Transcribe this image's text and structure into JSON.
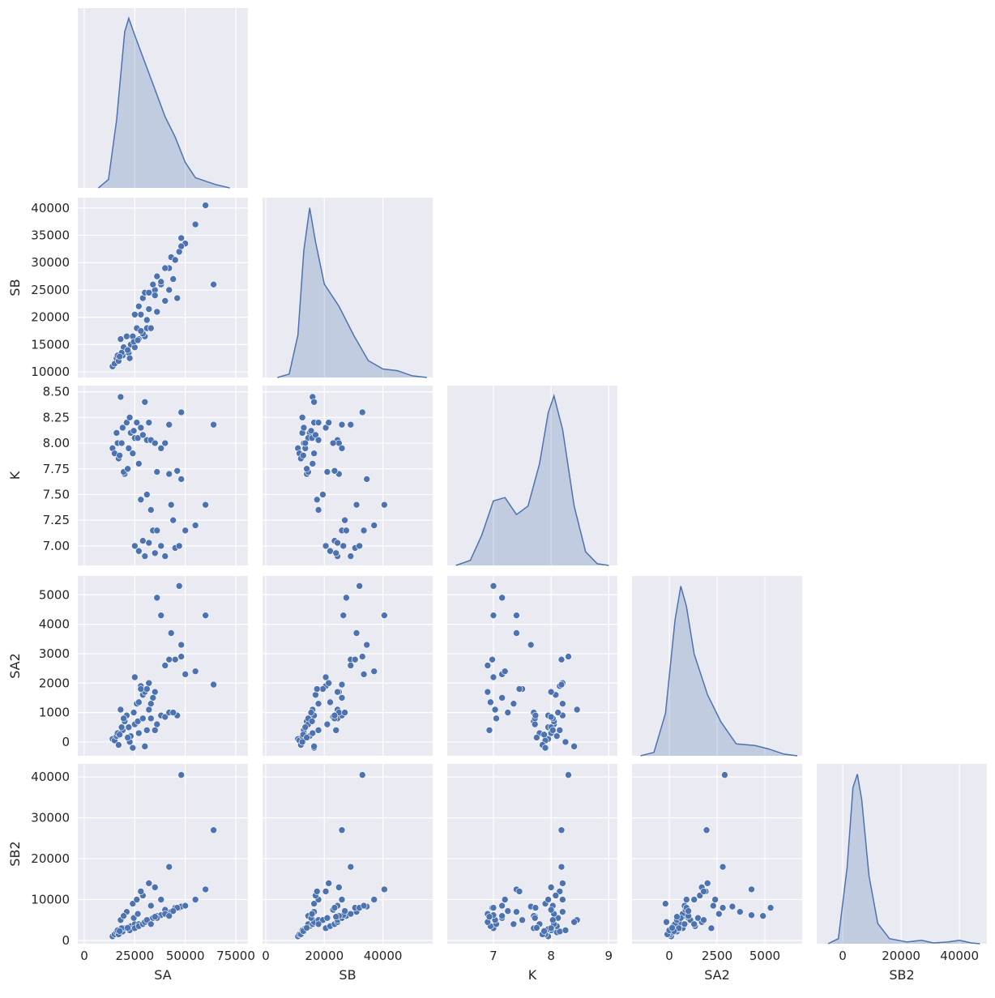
{
  "chart_data": {
    "type": "pairplot",
    "corner": true,
    "point_color": "#4c72b0",
    "fill_color": "#4c72b0",
    "background": "#eaeaf2",
    "variables": [
      {
        "name": "SA",
        "xlim": [
          -3200,
          81000
        ],
        "xticks": [
          0,
          25000,
          50000,
          75000
        ],
        "values": [
          14000,
          15000,
          16000,
          17000,
          16500,
          18000,
          19000,
          20000,
          21000,
          22000,
          23000,
          24000,
          25000,
          26000,
          27000,
          28000,
          30000,
          19500,
          22500,
          18500,
          24500,
          17500,
          21500,
          26500,
          29000,
          31000,
          33000,
          35000,
          38000,
          40000,
          32000,
          42000,
          64000,
          25000,
          27000,
          29000,
          30000,
          32000,
          34000,
          36000,
          38000,
          40000,
          43000,
          45000,
          47000,
          48000,
          50000,
          55000,
          60000,
          42000,
          31000,
          36000,
          28000,
          33000,
          46000,
          35000,
          44000,
          48000
        ],
        "kde": {
          "x": [
            7000,
            12000,
            16000,
            20000,
            22000,
            25000,
            30000,
            35000,
            40000,
            45000,
            50000,
            55000,
            60000,
            65000,
            72000
          ],
          "density": [
            0,
            0.05,
            0.4,
            0.92,
            1.0,
            0.9,
            0.74,
            0.58,
            0.42,
            0.3,
            0.15,
            0.06,
            0.04,
            0.02,
            0
          ]
        }
      },
      {
        "name": "SB",
        "xlim": [
          -1100,
          57000
        ],
        "xticks": [
          0,
          20000,
          40000
        ],
        "ylim": [
          8970,
          41900
        ],
        "yticks": [
          10000,
          15000,
          20000,
          25000,
          30000,
          35000,
          40000
        ],
        "values": [
          11000,
          11500,
          12500,
          12000,
          13000,
          16000,
          13000,
          14000,
          16500,
          13500,
          15000,
          16500,
          14500,
          18000,
          16000,
          20500,
          16500,
          14500,
          12500,
          13500,
          15500,
          12800,
          14000,
          15800,
          17000,
          18000,
          24500,
          25000,
          26000,
          23000,
          21500,
          29000,
          26000,
          20500,
          22000,
          23500,
          24500,
          24500,
          26000,
          27500,
          26500,
          29000,
          31000,
          30500,
          32000,
          34500,
          33500,
          37000,
          40500,
          25000,
          19500,
          21000,
          17500,
          18000,
          23500,
          24000,
          27000,
          33000
        ],
        "kde": {
          "x": [
            4000,
            8000,
            11000,
            13000,
            15000,
            17000,
            20000,
            25000,
            30000,
            35000,
            40000,
            45000,
            50000,
            55000
          ],
          "density": [
            0,
            0.02,
            0.25,
            0.75,
            1.0,
            0.8,
            0.55,
            0.42,
            0.25,
            0.1,
            0.05,
            0.04,
            0.01,
            0
          ]
        }
      },
      {
        "name": "K",
        "xlim": [
          6.2,
          9.15
        ],
        "xticks": [
          7,
          8,
          9
        ],
        "ylim": [
          6.81,
          8.56
        ],
        "yticks": [
          {
            "value": 7.0,
            "label": "7.00"
          },
          {
            "value": 7.25,
            "label": "7.25"
          },
          {
            "value": 7.5,
            "label": "7.50"
          },
          {
            "value": 7.75,
            "label": "7.75"
          },
          {
            "value": 8.0,
            "label": "8.00"
          },
          {
            "value": 8.25,
            "label": "8.25"
          },
          {
            "value": 8.5,
            "label": "8.50"
          }
        ],
        "values": [
          7.95,
          7.9,
          8.1,
          7.85,
          8.0,
          8.45,
          8.15,
          7.7,
          8.2,
          7.95,
          8.1,
          7.9,
          8.05,
          8.2,
          7.8,
          8.15,
          8.4,
          7.72,
          8.25,
          8.0,
          8.12,
          7.88,
          7.75,
          8.05,
          8.08,
          8.03,
          8.03,
          8.0,
          7.95,
          8.0,
          8.2,
          8.18,
          8.18,
          7.0,
          6.95,
          7.05,
          6.9,
          7.03,
          7.15,
          7.15,
          7.0,
          6.9,
          7.4,
          6.98,
          7.0,
          7.65,
          7.15,
          7.2,
          7.4,
          7.7,
          7.5,
          7.72,
          7.45,
          7.35,
          7.73,
          6.93,
          7.25,
          8.3
        ],
        "kde": {
          "x": [
            6.35,
            6.6,
            6.8,
            7.0,
            7.2,
            7.4,
            7.6,
            7.8,
            7.95,
            8.05,
            8.2,
            8.4,
            8.6,
            8.8,
            9.0
          ],
          "density": [
            0,
            0.03,
            0.18,
            0.38,
            0.4,
            0.3,
            0.35,
            0.6,
            0.9,
            1.0,
            0.8,
            0.35,
            0.08,
            0.01,
            0
          ]
        }
      },
      {
        "name": "SA2",
        "xlim": [
          -1950,
          6950
        ],
        "xticks": [
          0,
          2500,
          5000
        ],
        "ylim": [
          -470,
          5640
        ],
        "yticks": [
          0,
          1000,
          2000,
          3000,
          4000,
          5000
        ],
        "values": [
          100,
          50,
          200,
          -100,
          300,
          1100,
          400,
          700,
          900,
          500,
          200,
          -200,
          600,
          1300,
          300,
          1900,
          -150,
          800,
          0,
          500,
          1000,
          250,
          150,
          700,
          1600,
          400,
          800,
          1700,
          900,
          850,
          2000,
          2800,
          1950,
          2200,
          1350,
          800,
          1700,
          1100,
          1500,
          4900,
          4300,
          2600,
          3700,
          2800,
          5300,
          3300,
          2300,
          2400,
          4300,
          1000,
          1800,
          600,
          1800,
          1300,
          900,
          400,
          1000,
          2900
        ],
        "kde": {
          "x": [
            -1500,
            -800,
            -200,
            300,
            600,
            900,
            1300,
            2000,
            2700,
            3500,
            4500,
            5200,
            6000,
            6700
          ],
          "density": [
            0,
            0.02,
            0.25,
            0.8,
            1.0,
            0.88,
            0.6,
            0.36,
            0.2,
            0.07,
            0.06,
            0.04,
            0.01,
            0
          ]
        }
      },
      {
        "name": "SB2",
        "xlim": [
          -8900,
          49400
        ],
        "xticks": [
          0,
          20000,
          40000
        ],
        "ylim": [
          -800,
          43200
        ],
        "yticks": [
          0,
          10000,
          20000,
          30000,
          40000
        ],
        "values": [
          1000,
          1500,
          2000,
          1500,
          2500,
          5000,
          2200,
          3000,
          7000,
          2800,
          3500,
          9000,
          4000,
          10000,
          4000,
          12000,
          4500,
          6000,
          2500,
          3000,
          5500,
          2300,
          3100,
          6500,
          11000,
          5000,
          8500,
          13000,
          10000,
          7500,
          14000,
          18000,
          27000,
          3000,
          3500,
          4000,
          4500,
          5000,
          5500,
          6000,
          6200,
          6500,
          7000,
          8000,
          8000,
          8300,
          8500,
          10000,
          12500,
          6000,
          5000,
          5500,
          12000,
          4000,
          8000,
          5800,
          7200,
          40500
        ],
        "kde": {
          "x": [
            -5000,
            -1500,
            1500,
            3500,
            5000,
            6500,
            9000,
            12000,
            16000,
            22000,
            27000,
            31000,
            36000,
            40000,
            44000,
            47000
          ],
          "density": [
            0,
            0.03,
            0.45,
            0.92,
            1.0,
            0.85,
            0.4,
            0.12,
            0.03,
            0.01,
            0.02,
            0.005,
            0.01,
            0.02,
            0.005,
            0
          ]
        }
      }
    ]
  }
}
